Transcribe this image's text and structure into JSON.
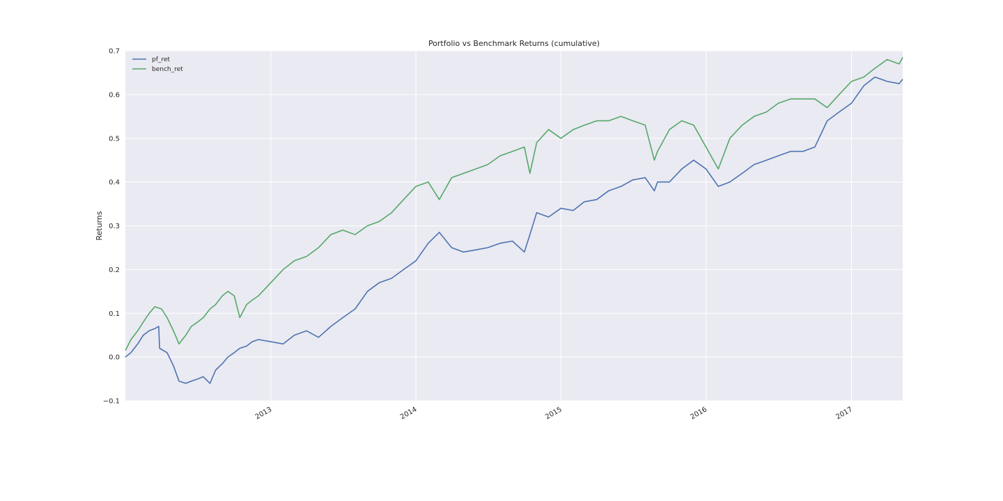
{
  "chart_data": {
    "type": "line",
    "title": "Portfolio vs Benchmark Returns (cumulative)",
    "xlabel": "",
    "ylabel": "Returns",
    "xlim": [
      "2012-01-01",
      "2017-05-10"
    ],
    "ylim": [
      -0.1,
      0.7
    ],
    "y_ticks": [
      -0.1,
      0.0,
      0.1,
      0.2,
      0.3,
      0.4,
      0.5,
      0.6,
      0.7
    ],
    "y_tick_labels": [
      "−0.1",
      "0.0",
      "0.1",
      "0.2",
      "0.3",
      "0.4",
      "0.5",
      "0.6",
      "0.7"
    ],
    "x_ticks": [
      "2013-01-01",
      "2014-01-01",
      "2015-01-01",
      "2016-01-01",
      "2017-01-01"
    ],
    "x_tick_labels": [
      "2013",
      "2014",
      "2015",
      "2016",
      "2017"
    ],
    "grid": true,
    "legend_position": "top-left",
    "colors": {
      "background": "#eaeaf2",
      "grid": "#ffffff",
      "pf_ret": "#4c72b0",
      "bench_ret": "#55a868"
    },
    "series": [
      {
        "name": "pf_ret",
        "x": [
          "2012-01-01",
          "2012-01-15",
          "2012-02-01",
          "2012-02-15",
          "2012-03-01",
          "2012-03-15",
          "2012-03-25",
          "2012-03-27",
          "2012-04-15",
          "2012-05-01",
          "2012-05-15",
          "2012-06-01",
          "2012-06-15",
          "2012-07-01",
          "2012-07-15",
          "2012-08-01",
          "2012-08-15",
          "2012-09-01",
          "2012-09-15",
          "2012-10-01",
          "2012-10-15",
          "2012-11-01",
          "2012-11-15",
          "2012-12-01",
          "2013-01-01",
          "2013-02-01",
          "2013-03-01",
          "2013-04-01",
          "2013-05-01",
          "2013-06-01",
          "2013-07-01",
          "2013-08-01",
          "2013-09-01",
          "2013-10-01",
          "2013-11-01",
          "2013-12-01",
          "2014-01-01",
          "2014-02-01",
          "2014-03-01",
          "2014-04-01",
          "2014-05-01",
          "2014-06-01",
          "2014-07-01",
          "2014-08-01",
          "2014-09-01",
          "2014-10-01",
          "2014-10-15",
          "2014-11-01",
          "2014-12-01",
          "2015-01-01",
          "2015-02-01",
          "2015-03-01",
          "2015-04-01",
          "2015-05-01",
          "2015-06-01",
          "2015-07-01",
          "2015-08-01",
          "2015-08-24",
          "2015-09-01",
          "2015-10-01",
          "2015-11-01",
          "2015-12-01",
          "2016-01-01",
          "2016-02-01",
          "2016-03-01",
          "2016-04-01",
          "2016-05-01",
          "2016-06-01",
          "2016-07-01",
          "2016-08-01",
          "2016-09-01",
          "2016-10-01",
          "2016-11-01",
          "2016-12-01",
          "2017-01-01",
          "2017-02-01",
          "2017-03-01",
          "2017-04-01",
          "2017-05-01",
          "2017-05-10"
        ],
        "values": [
          0.0,
          0.01,
          0.03,
          0.05,
          0.06,
          0.065,
          0.07,
          0.02,
          0.01,
          -0.02,
          -0.055,
          -0.06,
          -0.055,
          -0.05,
          -0.045,
          -0.06,
          -0.03,
          -0.015,
          0.0,
          0.01,
          0.02,
          0.025,
          0.035,
          0.04,
          0.035,
          0.03,
          0.05,
          0.06,
          0.045,
          0.07,
          0.09,
          0.11,
          0.15,
          0.17,
          0.18,
          0.2,
          0.22,
          0.26,
          0.285,
          0.25,
          0.24,
          0.245,
          0.25,
          0.26,
          0.265,
          0.24,
          0.28,
          0.33,
          0.32,
          0.34,
          0.335,
          0.355,
          0.36,
          0.38,
          0.39,
          0.405,
          0.41,
          0.38,
          0.4,
          0.4,
          0.43,
          0.45,
          0.43,
          0.39,
          0.4,
          0.42,
          0.44,
          0.45,
          0.46,
          0.47,
          0.47,
          0.48,
          0.54,
          0.56,
          0.58,
          0.62,
          0.64,
          0.63,
          0.625,
          0.635
        ]
      },
      {
        "name": "bench_ret",
        "x": [
          "2012-01-01",
          "2012-01-15",
          "2012-02-01",
          "2012-02-15",
          "2012-03-01",
          "2012-03-15",
          "2012-04-01",
          "2012-04-15",
          "2012-05-01",
          "2012-05-15",
          "2012-06-01",
          "2012-06-15",
          "2012-07-01",
          "2012-07-15",
          "2012-08-01",
          "2012-08-15",
          "2012-09-01",
          "2012-09-15",
          "2012-10-01",
          "2012-10-15",
          "2012-11-01",
          "2012-11-15",
          "2012-12-01",
          "2013-01-01",
          "2013-02-01",
          "2013-03-01",
          "2013-04-01",
          "2013-05-01",
          "2013-06-01",
          "2013-07-01",
          "2013-08-01",
          "2013-09-01",
          "2013-10-01",
          "2013-11-01",
          "2013-12-01",
          "2014-01-01",
          "2014-02-01",
          "2014-03-01",
          "2014-04-01",
          "2014-05-01",
          "2014-06-01",
          "2014-07-01",
          "2014-08-01",
          "2014-09-01",
          "2014-10-01",
          "2014-10-15",
          "2014-11-01",
          "2014-12-01",
          "2015-01-01",
          "2015-02-01",
          "2015-03-01",
          "2015-04-01",
          "2015-05-01",
          "2015-06-01",
          "2015-07-01",
          "2015-08-01",
          "2015-08-24",
          "2015-09-01",
          "2015-10-01",
          "2015-11-01",
          "2015-12-01",
          "2016-01-01",
          "2016-02-01",
          "2016-03-01",
          "2016-04-01",
          "2016-05-01",
          "2016-06-01",
          "2016-07-01",
          "2016-08-01",
          "2016-09-01",
          "2016-10-01",
          "2016-11-01",
          "2016-12-01",
          "2017-01-01",
          "2017-02-01",
          "2017-03-01",
          "2017-04-01",
          "2017-05-01",
          "2017-05-10"
        ],
        "values": [
          0.015,
          0.04,
          0.06,
          0.08,
          0.1,
          0.115,
          0.11,
          0.09,
          0.06,
          0.03,
          0.05,
          0.07,
          0.08,
          0.09,
          0.11,
          0.12,
          0.14,
          0.15,
          0.14,
          0.09,
          0.12,
          0.13,
          0.14,
          0.17,
          0.2,
          0.22,
          0.23,
          0.25,
          0.28,
          0.29,
          0.28,
          0.3,
          0.31,
          0.33,
          0.36,
          0.39,
          0.4,
          0.36,
          0.41,
          0.42,
          0.43,
          0.44,
          0.46,
          0.47,
          0.48,
          0.42,
          0.49,
          0.52,
          0.5,
          0.52,
          0.53,
          0.54,
          0.54,
          0.55,
          0.54,
          0.53,
          0.45,
          0.47,
          0.52,
          0.54,
          0.53,
          0.48,
          0.43,
          0.5,
          0.53,
          0.55,
          0.56,
          0.58,
          0.59,
          0.59,
          0.59,
          0.57,
          0.6,
          0.63,
          0.64,
          0.66,
          0.68,
          0.67,
          0.685
        ]
      }
    ]
  }
}
